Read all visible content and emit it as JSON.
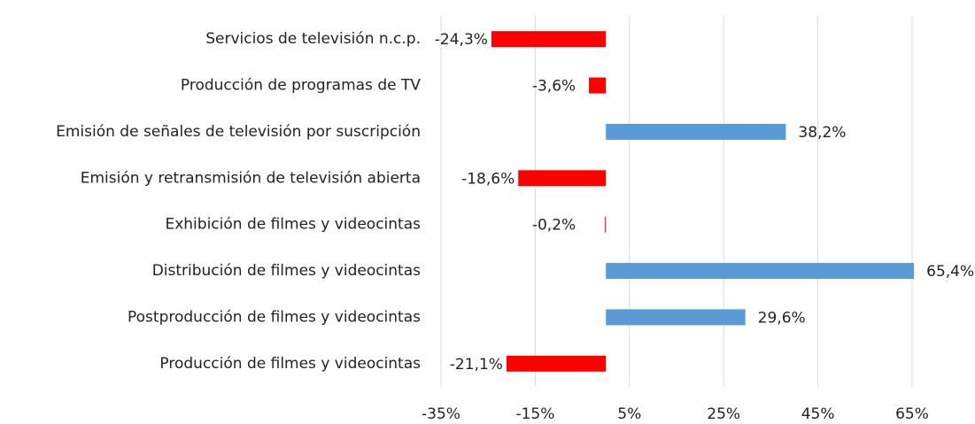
{
  "chart_data": {
    "type": "barh",
    "categories": [
      "Servicios de televisión n.c.p.",
      "Producción de programas de TV",
      "Emisión de señales de televisión por suscripción",
      "Emisión y retransmisión de televisión abierta",
      "Exhibición de filmes y videocintas",
      "Distribución de filmes y videocintas",
      "Postproducción de filmes y videocintas",
      "Producción de filmes y videocintas"
    ],
    "values": [
      -24.3,
      -3.6,
      38.2,
      -18.6,
      -0.2,
      65.4,
      29.6,
      -21.1
    ],
    "value_labels": [
      "-24,3%",
      "-3,6%",
      "38,2%",
      "-18,6%",
      "-0,2%",
      "65,4%",
      "29,6%",
      "-21,1%"
    ],
    "colors": [
      "#ff0000",
      "#ff0000",
      "#5b9bd5",
      "#ff0000",
      "#ff0000",
      "#5b9bd5",
      "#5b9bd5",
      "#ff0000"
    ],
    "xlim": [
      -35,
      70
    ],
    "xticks": [
      {
        "value": -35,
        "label": "-35%"
      },
      {
        "value": -15,
        "label": "-15%"
      },
      {
        "value": 5,
        "label": "5%"
      },
      {
        "value": 25,
        "label": "25%"
      },
      {
        "value": 45,
        "label": "45%"
      },
      {
        "value": 65,
        "label": "65%"
      }
    ],
    "grid": true
  }
}
